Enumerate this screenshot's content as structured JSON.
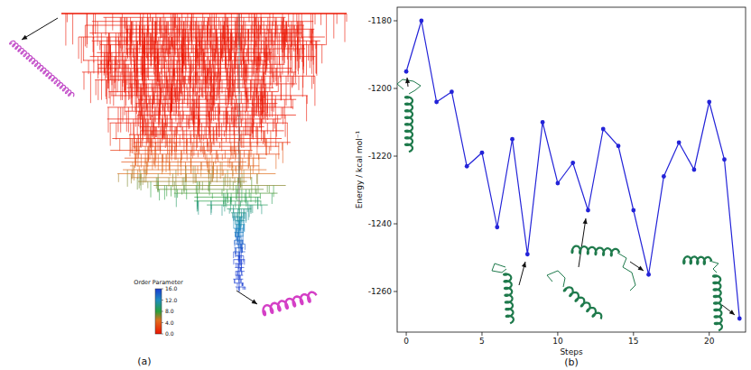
{
  "chart_data": [
    {
      "type": "disconnectivity",
      "label": "(a)",
      "colorbar": {
        "title": "Order Parameter",
        "range": [
          0,
          16
        ],
        "ticks": [
          {
            "value": 0,
            "label": "0.0"
          },
          {
            "value": 4,
            "label": "4.0"
          },
          {
            "value": 8,
            "label": "8.0"
          },
          {
            "value": 12,
            "label": "12.0"
          },
          {
            "value": 16,
            "label": "16.0"
          }
        ]
      }
    },
    {
      "type": "line",
      "label": "(b)",
      "x_label": "Steps",
      "y_label": "Energy / kcal mol⁻¹",
      "x": [
        0,
        1,
        2,
        3,
        4,
        5,
        6,
        7,
        8,
        9,
        10,
        11,
        12,
        13,
        14,
        15,
        16,
        17,
        18,
        19,
        20,
        21,
        22
      ],
      "values": [
        -1195,
        -1180,
        -1204,
        -1201,
        -1223,
        -1219,
        -1241,
        -1215,
        -1249,
        -1210,
        -1228,
        -1222,
        -1236,
        -1212,
        -1217,
        -1236,
        -1255,
        -1226,
        -1216,
        -1224,
        -1204,
        -1221,
        -1268
      ],
      "color": "#2323d8",
      "marker": "circle",
      "xlim": [
        -0.6,
        22.4
      ],
      "ylim": [
        -1272,
        -1176
      ],
      "xticks": [
        0,
        5,
        10,
        15,
        20
      ],
      "yticks": [
        -1260,
        -1240,
        -1220,
        -1200,
        -1180
      ]
    }
  ]
}
